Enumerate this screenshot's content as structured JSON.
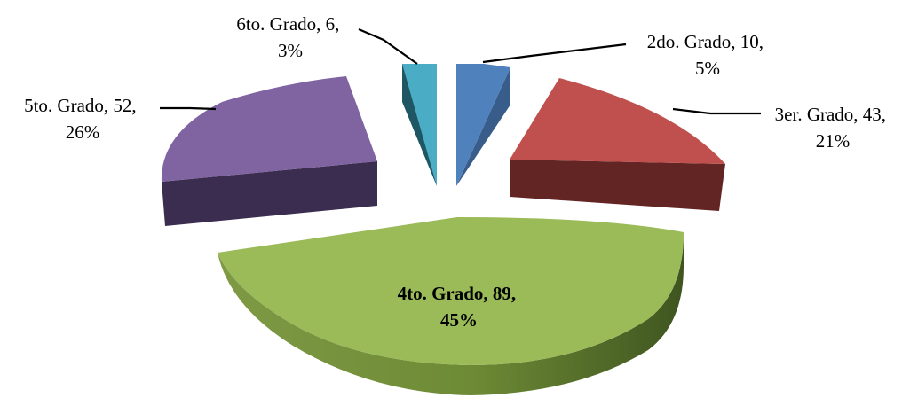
{
  "chart_data": {
    "type": "pie",
    "style": "3d-exploded",
    "title": "",
    "slices": [
      {
        "category": "2do. Grado",
        "value": 10,
        "percent": "5%",
        "color": "#4f81bd",
        "dark": "#385d8a",
        "line1": "2do. Grado, 10,",
        "line2": "5%"
      },
      {
        "category": "3er. Grado",
        "value": 43,
        "percent": "21%",
        "color": "#c0504d",
        "dark": "#632523",
        "line1": "3er. Grado, 43,",
        "line2": "21%"
      },
      {
        "category": "4to. Grado",
        "value": 89,
        "percent": "45%",
        "color": "#9bbb59",
        "dark": "#5c7a2c",
        "line1": "4to. Grado, 89,",
        "line2": "45%"
      },
      {
        "category": "5to. Grado",
        "value": 52,
        "percent": "26%",
        "color": "#8064a2",
        "dark": "#3b2d4f",
        "line1": "5to. Grado, 52,",
        "line2": "26%"
      },
      {
        "category": "6to. Grado",
        "value": 6,
        "percent": "3%",
        "color": "#4bacc6",
        "dark": "#1f5664",
        "line1": "6to. Grado, 6,",
        "line2": "3%"
      }
    ]
  }
}
